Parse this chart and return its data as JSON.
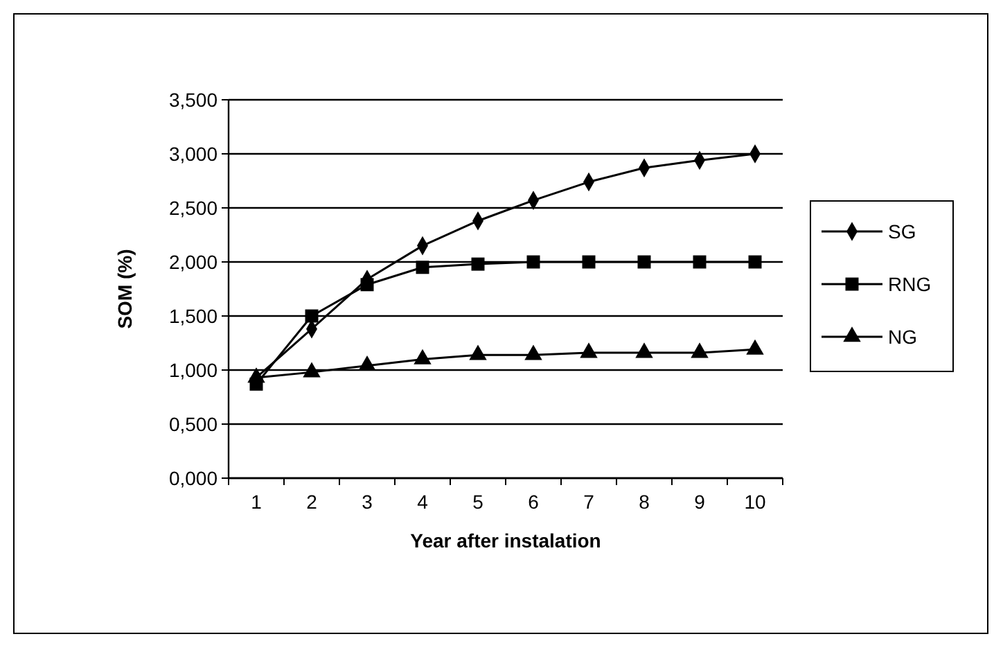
{
  "chart_data": {
    "type": "line",
    "xlabel": "Year after instalation",
    "ylabel": "SOM (%)",
    "categories": [
      "1",
      "2",
      "3",
      "4",
      "5",
      "6",
      "7",
      "8",
      "9",
      "10"
    ],
    "series": [
      {
        "name": "SG",
        "color": "#000000",
        "marker": "diamond",
        "values": [
          0.93,
          1.38,
          1.84,
          2.15,
          2.38,
          2.57,
          2.74,
          2.87,
          2.94,
          3.0
        ]
      },
      {
        "name": "RNG",
        "color": "#000000",
        "marker": "square",
        "values": [
          0.87,
          1.5,
          1.79,
          1.95,
          1.98,
          2.0,
          2.0,
          2.0,
          2.0,
          2.0
        ]
      },
      {
        "name": "NG",
        "color": "#000000",
        "marker": "triangle",
        "values": [
          0.93,
          0.98,
          1.04,
          1.1,
          1.14,
          1.14,
          1.16,
          1.16,
          1.16,
          1.19
        ]
      }
    ],
    "ylim": [
      0,
      3.5
    ],
    "yticks": [
      {
        "value": 0,
        "label": "0,000"
      },
      {
        "value": 0.5,
        "label": "0,500"
      },
      {
        "value": 1,
        "label": "1,000"
      },
      {
        "value": 1.5,
        "label": "1,500"
      },
      {
        "value": 2,
        "label": "2,000"
      },
      {
        "value": 2.5,
        "label": "2,500"
      },
      {
        "value": 3,
        "label": "3,000"
      },
      {
        "value": 3.5,
        "label": "3,500"
      }
    ],
    "grid": "y",
    "legend": "right"
  }
}
